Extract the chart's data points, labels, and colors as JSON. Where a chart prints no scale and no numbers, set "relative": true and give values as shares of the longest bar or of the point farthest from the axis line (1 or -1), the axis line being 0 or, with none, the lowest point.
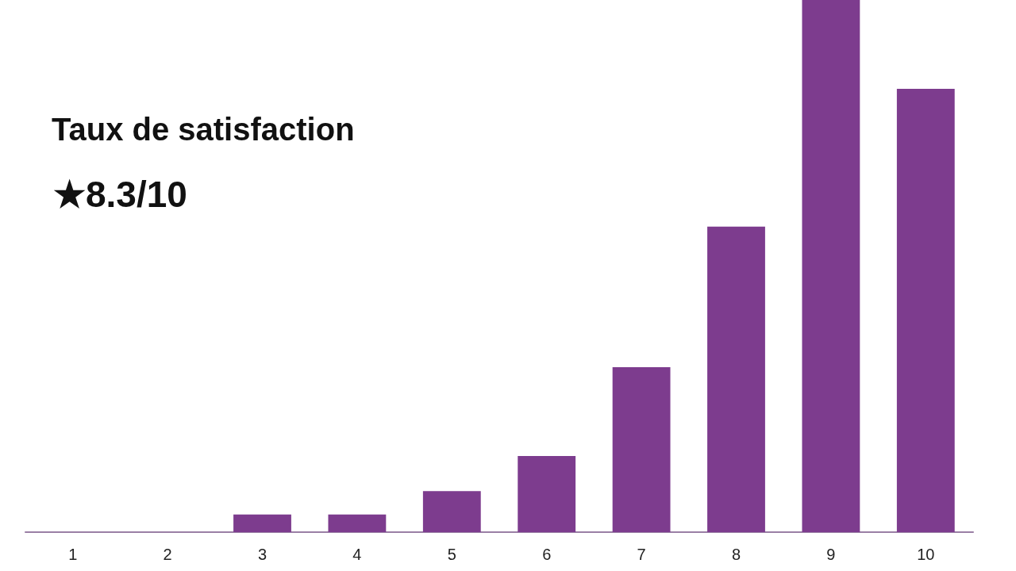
{
  "chart_data": {
    "type": "bar",
    "title": "Taux de satisfaction",
    "annotations": [
      "★8.3/10"
    ],
    "categories": [
      "1",
      "2",
      "3",
      "4",
      "5",
      "6",
      "7",
      "8",
      "9",
      "10"
    ],
    "values": [
      0,
      0,
      0.033,
      0.033,
      0.077,
      0.143,
      0.31,
      0.574,
      1,
      0.833
    ],
    "color": "#7d3c8e",
    "relative": true
  }
}
